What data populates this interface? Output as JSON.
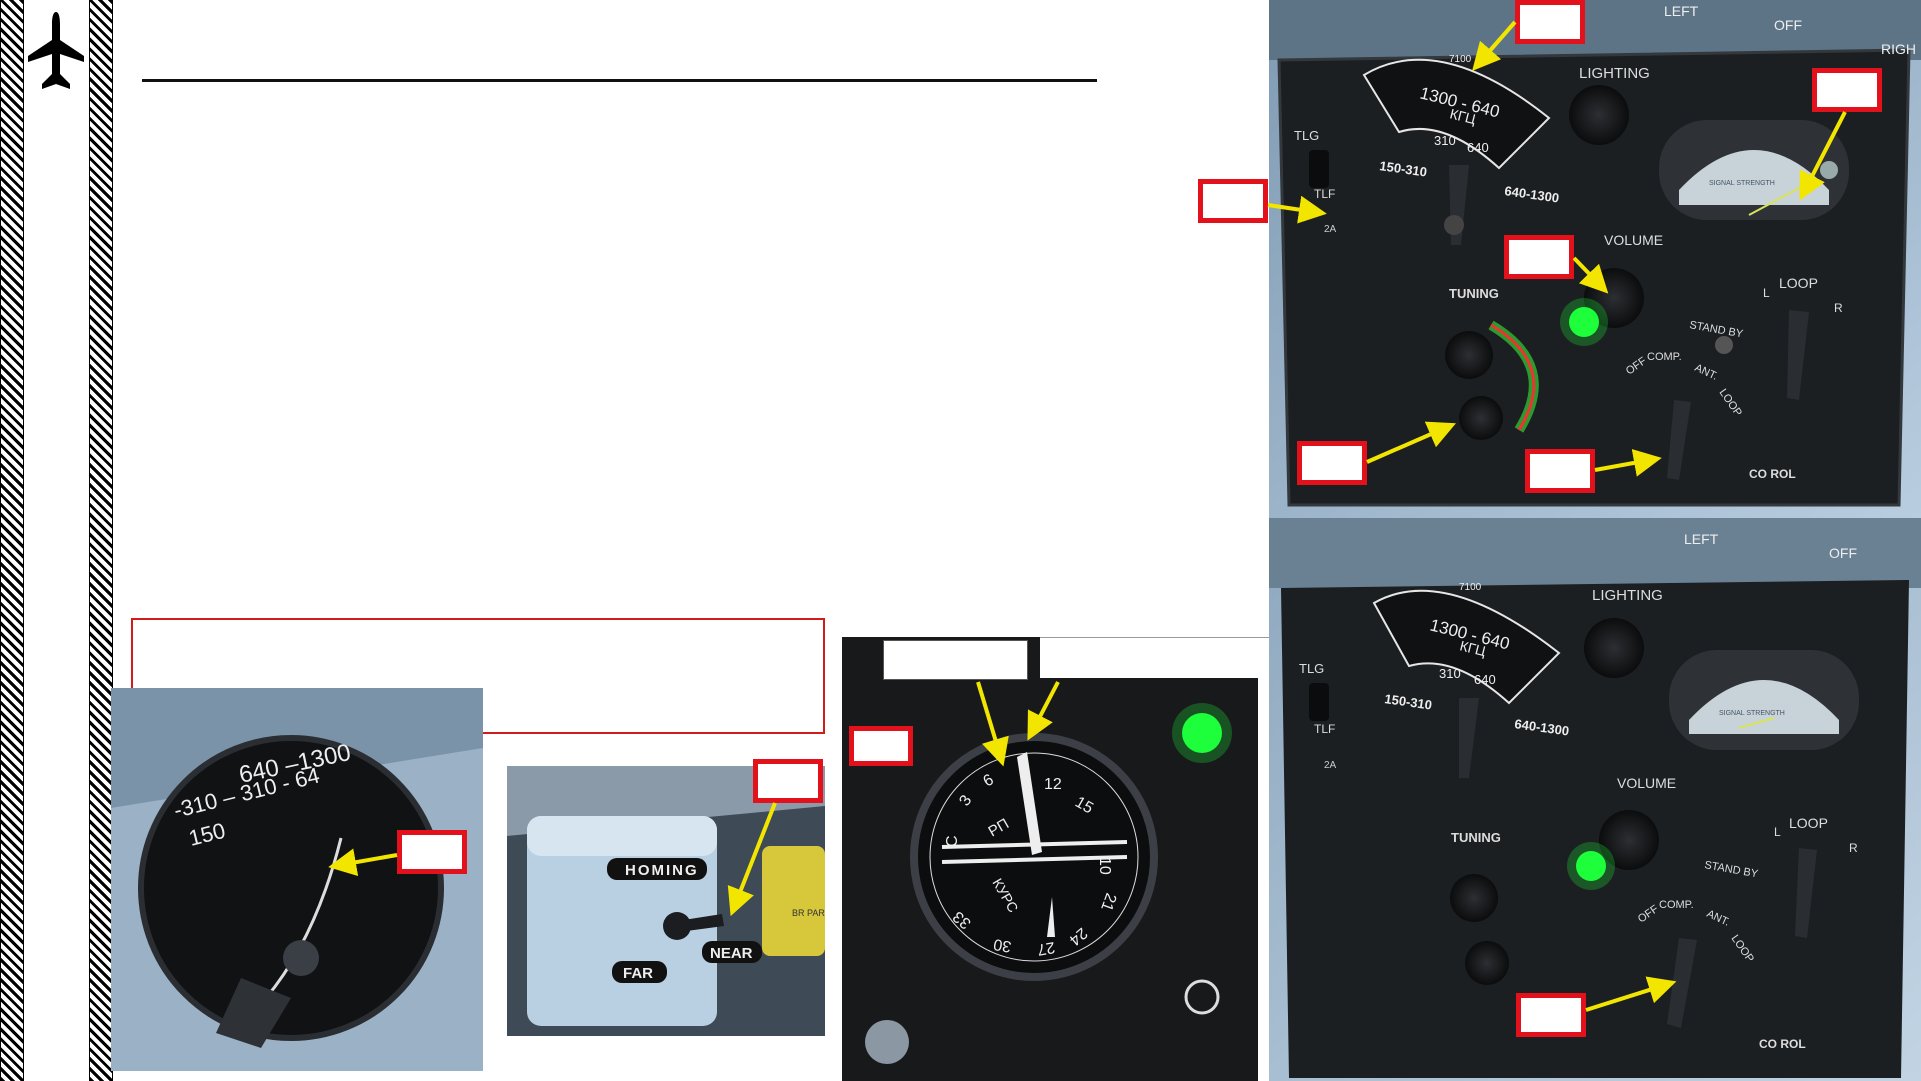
{
  "panel": {
    "lighting": "LIGHTING",
    "left": "LEFT",
    "right": "RIGH",
    "off": "OFF",
    "tlg": "TLG",
    "tlf": "TLF",
    "twoa": "2A",
    "band_scale": "1300 - 640",
    "unit": "КГЦ",
    "band_310": "310",
    "band_640": "640",
    "band_150_310": "150-310",
    "band_640_1300": "640-1300",
    "volume": "VOLUME",
    "tuning": "TUNING",
    "loop": "LOOP",
    "l": "L",
    "r": "R",
    "standby": "STAND BY",
    "off_mode": "OFF",
    "comp": "COMP.",
    "ant": "ANT.",
    "loop_mode": "LOOP",
    "control": "CO    ROL",
    "meter_label": "SIGNAL STRENGTH",
    "scale_top": "7100"
  },
  "knob_photo": {
    "scale_a": "640 –1300",
    "scale_b": "-310 – 310 - 64",
    "scale_c": "150"
  },
  "switch_photo": {
    "homing": "HOMING",
    "far": "FAR",
    "near": "NEAR",
    "side": "BR PARA"
  },
  "compass": {
    "course": "КУРС",
    "pu": "РП",
    "n3": "3",
    "n6": "6",
    "n12": "12",
    "n15": "15",
    "n10": "10",
    "n21": "21",
    "n24": "24",
    "n27": "27",
    "n30": "30",
    "n33": "33",
    "nC": "С",
    "nS": "Ю"
  },
  "colors": {
    "callout_border": "#e3111b",
    "arrow": "#f2e600",
    "indicator_green": "#1dff3a",
    "panel": "#1c1f22",
    "canopy": "#a9c1d6"
  }
}
